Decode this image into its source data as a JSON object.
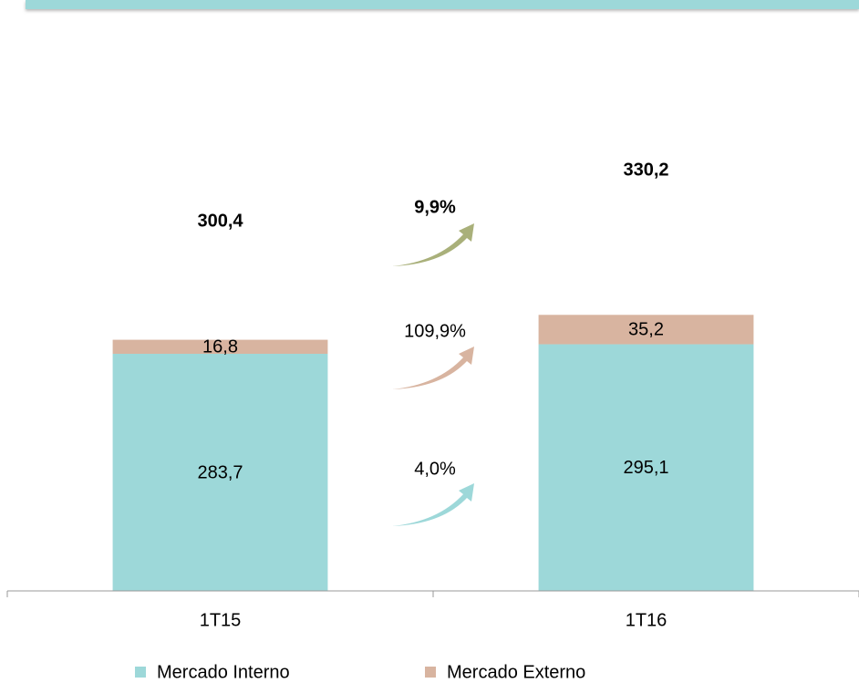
{
  "chart_data": {
    "type": "stacked_bar",
    "categories": [
      "1T15",
      "1T16"
    ],
    "series": [
      {
        "name": "Mercado Interno",
        "color": "#9dd8d9",
        "values": [
          283.7,
          295.1
        ],
        "value_labels": [
          "283,7",
          "295,1"
        ]
      },
      {
        "name": "Mercado Externo",
        "color": "#d8b4a0",
        "values": [
          16.8,
          35.2
        ],
        "value_labels": [
          "16,8",
          "35,2"
        ]
      }
    ],
    "totals": [
      300.4,
      330.2
    ],
    "total_labels": [
      "300,4",
      "330,2"
    ],
    "annotations": [
      {
        "text": "9,9%",
        "color": "#a9b07a",
        "bold": true
      },
      {
        "text": "109,9%",
        "color": "#d8b4a0",
        "bold": false
      },
      {
        "text": "4,0%",
        "color": "#9dd8d9",
        "bold": false
      }
    ],
    "ylim": [
      0,
      400
    ]
  }
}
